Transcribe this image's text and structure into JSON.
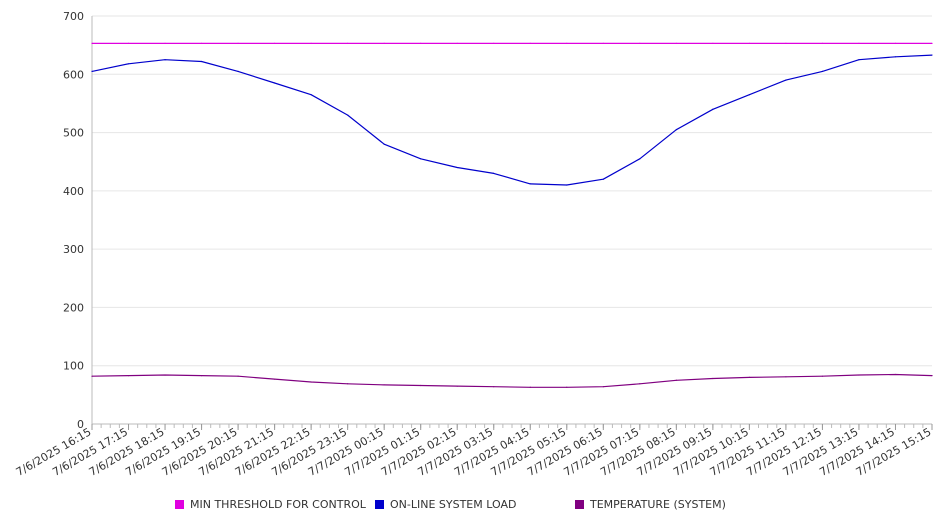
{
  "chart_data": {
    "type": "line",
    "title": "",
    "xlabel": "",
    "ylabel": "",
    "ylim": [
      0,
      700
    ],
    "y_ticks": [
      0,
      100,
      200,
      300,
      400,
      500,
      600,
      700
    ],
    "grid": "horizontal",
    "legend_position": "bottom",
    "x_labels": [
      "7/6/2025 16:15",
      "7/6/2025 17:15",
      "7/6/2025 18:15",
      "7/6/2025 19:15",
      "7/6/2025 20:15",
      "7/6/2025 21:15",
      "7/6/2025 22:15",
      "7/6/2025 23:15",
      "7/7/2025 00:15",
      "7/7/2025 01:15",
      "7/7/2025 02:15",
      "7/7/2025 03:15",
      "7/7/2025 04:15",
      "7/7/2025 05:15",
      "7/7/2025 06:15",
      "7/7/2025 07:15",
      "7/7/2025 08:15",
      "7/7/2025 09:15",
      "7/7/2025 10:15",
      "7/7/2025 11:15",
      "7/7/2025 12:15",
      "7/7/2025 13:15",
      "7/7/2025 14:15",
      "7/7/2025 15:15"
    ],
    "series": [
      {
        "name": "MIN THRESHOLD FOR CONTROL",
        "color": "#e000e0",
        "values": [
          653,
          653,
          653,
          653,
          653,
          653,
          653,
          653,
          653,
          653,
          653,
          653,
          653,
          653,
          653,
          653,
          653,
          653,
          653,
          653,
          653,
          653,
          653,
          653
        ]
      },
      {
        "name": "ON-LINE SYSTEM LOAD",
        "color": "#0000cc",
        "values": [
          605,
          618,
          625,
          622,
          605,
          585,
          565,
          530,
          480,
          455,
          440,
          430,
          412,
          410,
          420,
          455,
          505,
          540,
          565,
          590,
          605,
          625,
          630,
          633
        ]
      },
      {
        "name": "TEMPERATURE (SYSTEM)",
        "color": "#800080",
        "values": [
          82,
          83,
          84,
          83,
          82,
          77,
          72,
          69,
          67,
          66,
          65,
          64,
          63,
          63,
          64,
          69,
          75,
          78,
          80,
          81,
          82,
          84,
          85,
          83
        ]
      }
    ]
  }
}
